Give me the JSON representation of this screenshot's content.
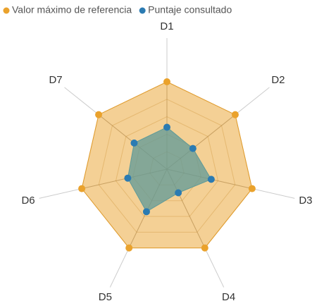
{
  "chart_data": {
    "type": "radar",
    "categories": [
      "D1",
      "D2",
      "D3",
      "D4",
      "D5",
      "D6",
      "D7"
    ],
    "series": [
      {
        "name": "Valor máximo de referencia",
        "color": "#eaa22c",
        "values": [
          5,
          5,
          5,
          5,
          5,
          5,
          5
        ]
      },
      {
        "name": "Puntaje consultado",
        "color": "#2b7bb2",
        "values": [
          2.4,
          1.9,
          2.6,
          1.5,
          2.7,
          2.3,
          2.4
        ]
      }
    ],
    "ylim": [
      0,
      5
    ],
    "yticks": [
      1,
      2,
      3,
      4,
      5
    ],
    "grid": true
  }
}
